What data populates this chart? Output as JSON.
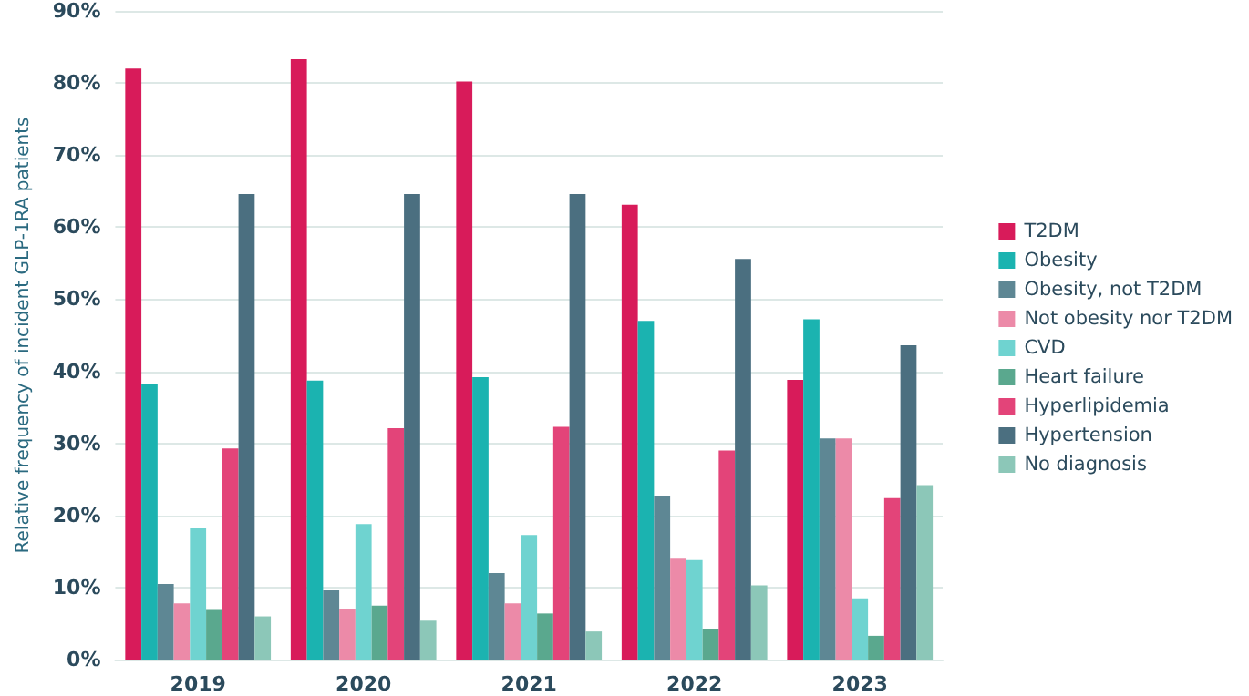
{
  "chart_data": {
    "type": "bar",
    "ylabel": "Relative frequency of incident GLP-1RA patients",
    "categories": [
      "2019",
      "2020",
      "2021",
      "2022",
      "2023"
    ],
    "series": [
      {
        "name": "T2DM",
        "color": "#d81b5a",
        "values": [
          82.0,
          83.3,
          80.2,
          63.1,
          38.8
        ]
      },
      {
        "name": "Obesity",
        "color": "#1bb3b0",
        "values": [
          38.3,
          38.7,
          39.2,
          47.0,
          47.2
        ]
      },
      {
        "name": "Obesity, not T2DM",
        "color": "#5e8794",
        "values": [
          10.5,
          9.6,
          12.0,
          22.7,
          30.7
        ]
      },
      {
        "name": "Not obesity nor T2DM",
        "color": "#ec8aa8",
        "values": [
          7.8,
          7.0,
          7.8,
          14.0,
          30.7
        ]
      },
      {
        "name": "CVD",
        "color": "#6fd3d0",
        "values": [
          18.2,
          18.8,
          17.3,
          13.8,
          8.5
        ]
      },
      {
        "name": "Heart failure",
        "color": "#5aa88e",
        "values": [
          6.9,
          7.5,
          6.4,
          4.3,
          3.3
        ]
      },
      {
        "name": "Hyperlipidemia",
        "color": "#e34479",
        "values": [
          29.3,
          32.1,
          32.3,
          29.0,
          22.4
        ]
      },
      {
        "name": "Hypertension",
        "color": "#4b6f80",
        "values": [
          64.6,
          64.6,
          64.6,
          55.6,
          43.6
        ]
      },
      {
        "name": "No diagnosis",
        "color": "#8cc7b8",
        "values": [
          6.0,
          5.4,
          3.9,
          10.3,
          24.2
        ]
      }
    ],
    "ylim": [
      0,
      90
    ],
    "yticks": [
      {
        "value": 0,
        "label": "0%"
      },
      {
        "value": 10,
        "label": "10%"
      },
      {
        "value": 20,
        "label": "20%"
      },
      {
        "value": 30,
        "label": "30%"
      },
      {
        "value": 40,
        "label": "40%"
      },
      {
        "value": 50,
        "label": "50%"
      },
      {
        "value": 60,
        "label": "60%"
      },
      {
        "value": 70,
        "label": "70%"
      },
      {
        "value": 80,
        "label": "80%"
      },
      {
        "value": 90,
        "label": "90%"
      }
    ],
    "grid": "y",
    "legend": "right"
  }
}
